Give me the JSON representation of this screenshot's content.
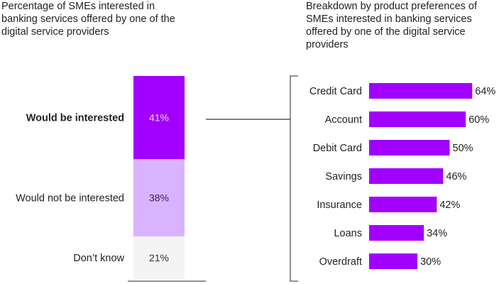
{
  "chart_data": [
    {
      "type": "bar",
      "stacked": true,
      "title": "Percentage of SMEs interested in banking services offered by one of the digital service providers",
      "categories": [
        "Would be interested",
        "Would not be interested",
        "Don’t know"
      ],
      "values": [
        41,
        38,
        21
      ],
      "labels": [
        "41%",
        "38%",
        "21%"
      ],
      "colors": [
        "#a100ff",
        "#d9b3ff",
        "#f4f4f4"
      ],
      "highlight": "Would be interested"
    },
    {
      "type": "bar",
      "orientation": "horizontal",
      "title": "Breakdown by product preferences of SMEs interested in banking services offered by one of the digital service providers",
      "categories": [
        "Credit Card",
        "Account",
        "Debit Card",
        "Savings",
        "Insurance",
        "Loans",
        "Overdraft"
      ],
      "values": [
        64,
        60,
        50,
        46,
        42,
        34,
        30
      ],
      "labels": [
        "64%",
        "60%",
        "50%",
        "46%",
        "42%",
        "34%",
        "30%"
      ],
      "color": "#a100ff"
    }
  ]
}
